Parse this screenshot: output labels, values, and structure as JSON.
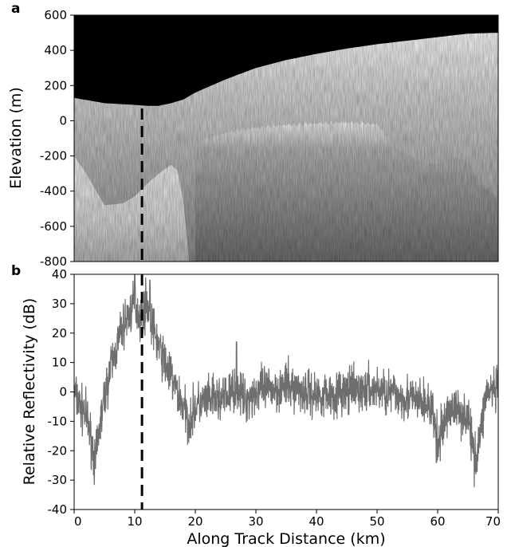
{
  "chart_data": [
    {
      "panel": "a",
      "type": "heatmap",
      "title": "",
      "xlabel": "",
      "ylabel": "Elevation (m)",
      "xlim": [
        0,
        70
      ],
      "ylim": [
        -800,
        600
      ],
      "yticks": [
        600,
        400,
        200,
        0,
        -200,
        -400,
        -600,
        -800
      ],
      "colormap": [
        "#000000",
        "#ffffff"
      ],
      "surface_elevation": {
        "x": [
          0,
          5,
          10,
          12,
          14,
          16,
          18,
          20,
          25,
          30,
          35,
          40,
          45,
          50,
          55,
          60,
          65,
          70
        ],
        "y": [
          130,
          100,
          90,
          85,
          85,
          100,
          120,
          160,
          235,
          300,
          345,
          380,
          410,
          435,
          455,
          475,
          495,
          500
        ]
      },
      "bed_reflector": {
        "x": [
          20,
          23,
          26,
          30,
          35,
          40,
          45,
          50,
          52,
          54,
          56,
          58,
          60,
          62,
          65,
          67,
          70
        ],
        "y": [
          -130,
          -90,
          -60,
          -40,
          -25,
          -15,
          -10,
          -20,
          -110,
          -170,
          -220,
          -240,
          -250,
          -200,
          -230,
          -360,
          -440
        ]
      },
      "marker_x": 11.2
    },
    {
      "panel": "b",
      "type": "line",
      "title": "",
      "xlabel": "Along Track Distance (km)",
      "ylabel": "Relative Reflectivity (dB)",
      "xlim": [
        0,
        70
      ],
      "ylim": [
        -40,
        40
      ],
      "xticks": [
        0,
        10,
        20,
        30,
        40,
        50,
        60,
        70
      ],
      "yticks": [
        40,
        30,
        20,
        10,
        0,
        -10,
        -20,
        -30,
        -40
      ],
      "line_color": "#6e6e6e",
      "envelope": {
        "x": [
          0,
          1,
          2,
          3,
          3.5,
          4,
          5,
          6,
          7,
          8,
          9,
          10,
          11,
          12,
          13,
          14,
          15,
          16,
          17,
          18,
          19,
          20,
          22,
          25,
          27,
          28,
          30,
          35,
          40,
          45,
          50,
          55,
          59,
          60,
          62,
          65,
          66,
          67,
          68,
          70
        ],
        "y": [
          0,
          -5,
          -8,
          -18,
          -25,
          -15,
          -2,
          8,
          15,
          22,
          26,
          30,
          25,
          31,
          22,
          15,
          10,
          5,
          0,
          -5,
          -10,
          -5,
          -3,
          -2,
          2,
          -3,
          0,
          2,
          -1,
          0,
          1,
          -2,
          -5,
          -18,
          -5,
          -8,
          -22,
          -15,
          0,
          0
        ]
      },
      "noise_amplitude_db": 6,
      "sharp_features": [
        {
          "x": 3.5,
          "y": -26
        },
        {
          "x": 10,
          "y": 40
        },
        {
          "x": 12.5,
          "y": 38
        },
        {
          "x": 26.8,
          "y": 17
        },
        {
          "x": 59.8,
          "y": -24
        },
        {
          "x": 66.5,
          "y": -27
        }
      ],
      "marker_x": 11.2
    }
  ],
  "labels": {
    "panel_a": "a",
    "panel_b": "b"
  }
}
